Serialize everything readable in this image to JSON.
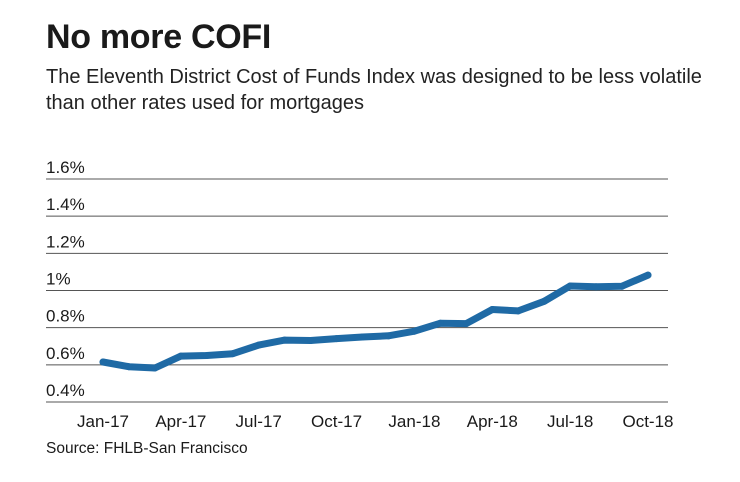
{
  "header": {
    "title": "No more COFI",
    "subtitle": "The Eleventh District Cost of Funds Index was designed to be less volatile than other rates used for mortgages"
  },
  "footer": {
    "source": "Source: FHLB-San Francisco"
  },
  "colors": {
    "line": "#1f6aa5",
    "grid": "#555555"
  },
  "chart_data": {
    "type": "line",
    "title": "No more COFI",
    "xlabel": "",
    "ylabel": "",
    "ylim": [
      0.4,
      1.6
    ],
    "grid": true,
    "y_ticks": [
      "0.4%",
      "0.6%",
      "0.8%",
      "1%",
      "1.2%",
      "1.4%",
      "1.6%"
    ],
    "y_tick_values": [
      0.4,
      0.6,
      0.8,
      1.0,
      1.2,
      1.4,
      1.6
    ],
    "x_tick_labels": [
      "Jan-17",
      "Apr-17",
      "Jul-17",
      "Oct-17",
      "Jan-18",
      "Apr-18",
      "Jul-18",
      "Oct-18"
    ],
    "x_tick_index": [
      0,
      3,
      6,
      9,
      12,
      15,
      18,
      21
    ],
    "categories": [
      "Jan-17",
      "Feb-17",
      "Mar-17",
      "Apr-17",
      "May-17",
      "Jun-17",
      "Jul-17",
      "Aug-17",
      "Sep-17",
      "Oct-17",
      "Nov-17",
      "Dec-17",
      "Jan-18",
      "Feb-18",
      "Mar-18",
      "Apr-18",
      "May-18",
      "Jun-18",
      "Jul-18",
      "Aug-18",
      "Sep-18",
      "Oct-18"
    ],
    "series": [
      {
        "name": "COFI",
        "values": [
          0.615,
          0.59,
          0.583,
          0.647,
          0.65,
          0.66,
          0.706,
          0.733,
          0.731,
          0.741,
          0.75,
          0.756,
          0.781,
          0.824,
          0.822,
          0.898,
          0.89,
          0.942,
          1.024,
          1.02,
          1.023,
          1.083
        ]
      }
    ]
  }
}
